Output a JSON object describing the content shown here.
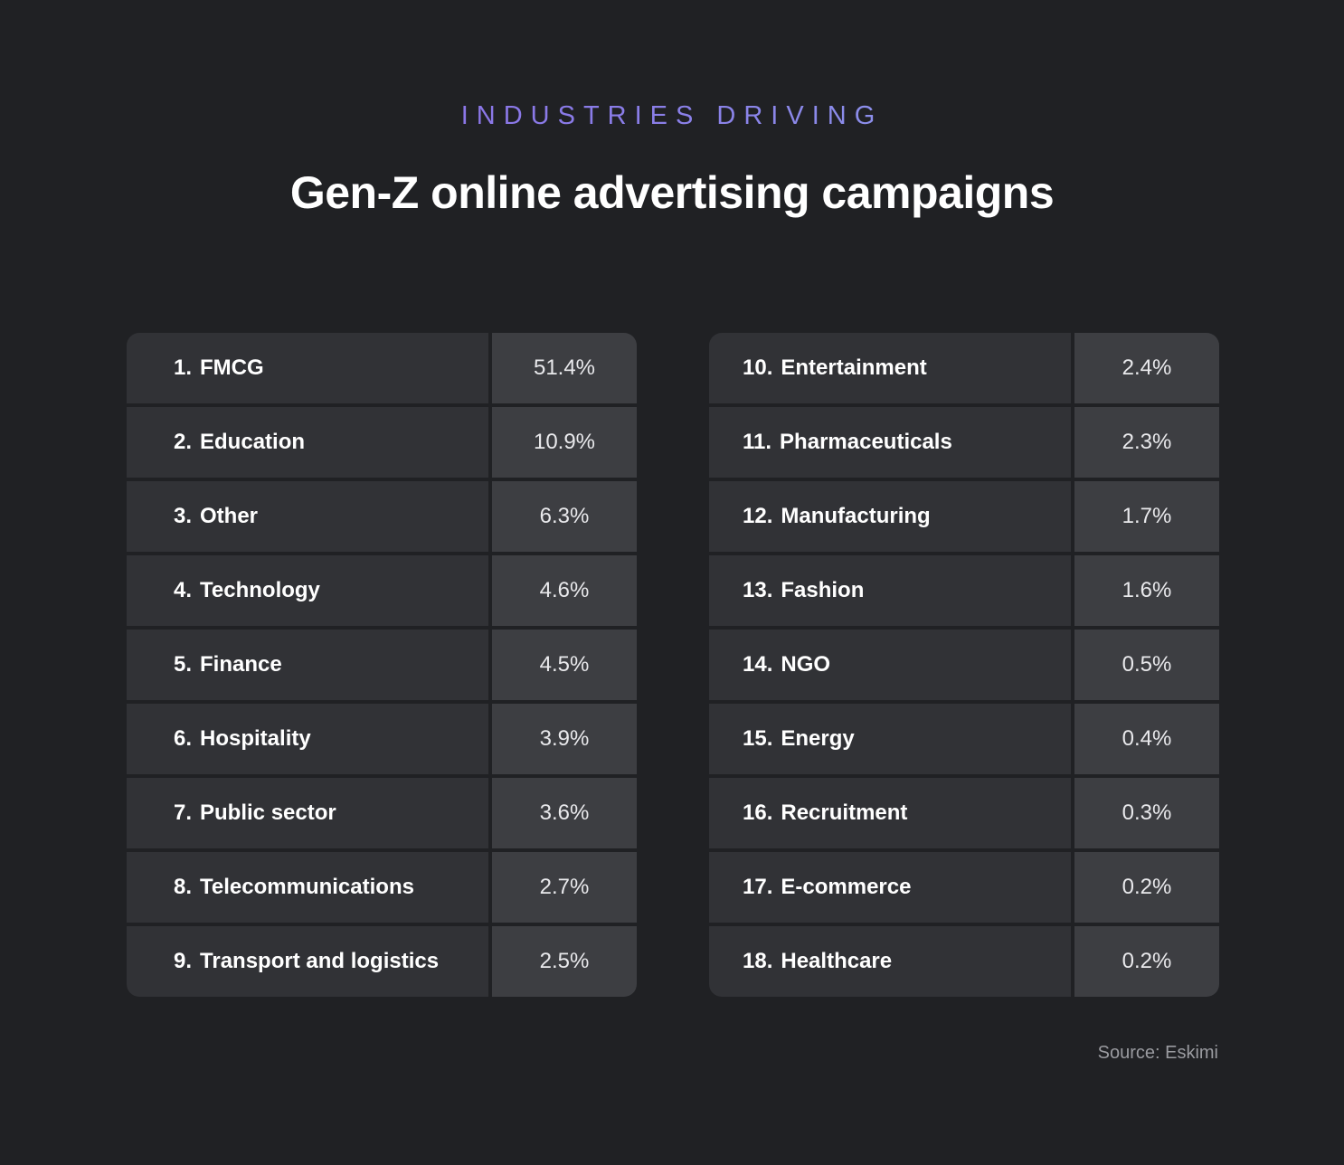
{
  "header": {
    "eyebrow": "INDUSTRIES DRIVING",
    "title": "Gen-Z online advertising campaigns"
  },
  "chart_data": {
    "type": "table",
    "columns": [
      [
        {
          "rank": "1.",
          "industry": "FMCG",
          "value": "51.4%"
        },
        {
          "rank": "2.",
          "industry": "Education",
          "value": "10.9%"
        },
        {
          "rank": "3.",
          "industry": "Other",
          "value": "6.3%"
        },
        {
          "rank": "4.",
          "industry": "Technology",
          "value": "4.6%"
        },
        {
          "rank": "5.",
          "industry": "Finance",
          "value": "4.5%"
        },
        {
          "rank": "6.",
          "industry": "Hospitality",
          "value": "3.9%"
        },
        {
          "rank": "7.",
          "industry": "Public sector",
          "value": "3.6%"
        },
        {
          "rank": "8.",
          "industry": "Telecommunications",
          "value": "2.7%"
        },
        {
          "rank": "9.",
          "industry": "Transport and logistics",
          "value": "2.5%"
        }
      ],
      [
        {
          "rank": "10.",
          "industry": "Entertainment",
          "value": "2.4%"
        },
        {
          "rank": "11.",
          "industry": "Pharmaceuticals",
          "value": "2.3%"
        },
        {
          "rank": "12.",
          "industry": "Manufacturing",
          "value": "1.7%"
        },
        {
          "rank": "13.",
          "industry": "Fashion",
          "value": "1.6%"
        },
        {
          "rank": "14.",
          "industry": "NGO",
          "value": "0.5%"
        },
        {
          "rank": "15.",
          "industry": "Energy",
          "value": "0.4%"
        },
        {
          "rank": "16.",
          "industry": "Recruitment",
          "value": "0.3%"
        },
        {
          "rank": "17.",
          "industry": "E-commerce",
          "value": "0.2%"
        },
        {
          "rank": "18.",
          "industry": "Healthcare",
          "value": "0.2%"
        }
      ]
    ]
  },
  "footer": {
    "source": "Source: Eskimi"
  },
  "colors": {
    "background": "#202124",
    "name_cell": "#313236",
    "value_cell": "#3d3e42",
    "eyebrow_gradient_start": "#8d63e6",
    "eyebrow_gradient_end": "#8fb0ef"
  }
}
